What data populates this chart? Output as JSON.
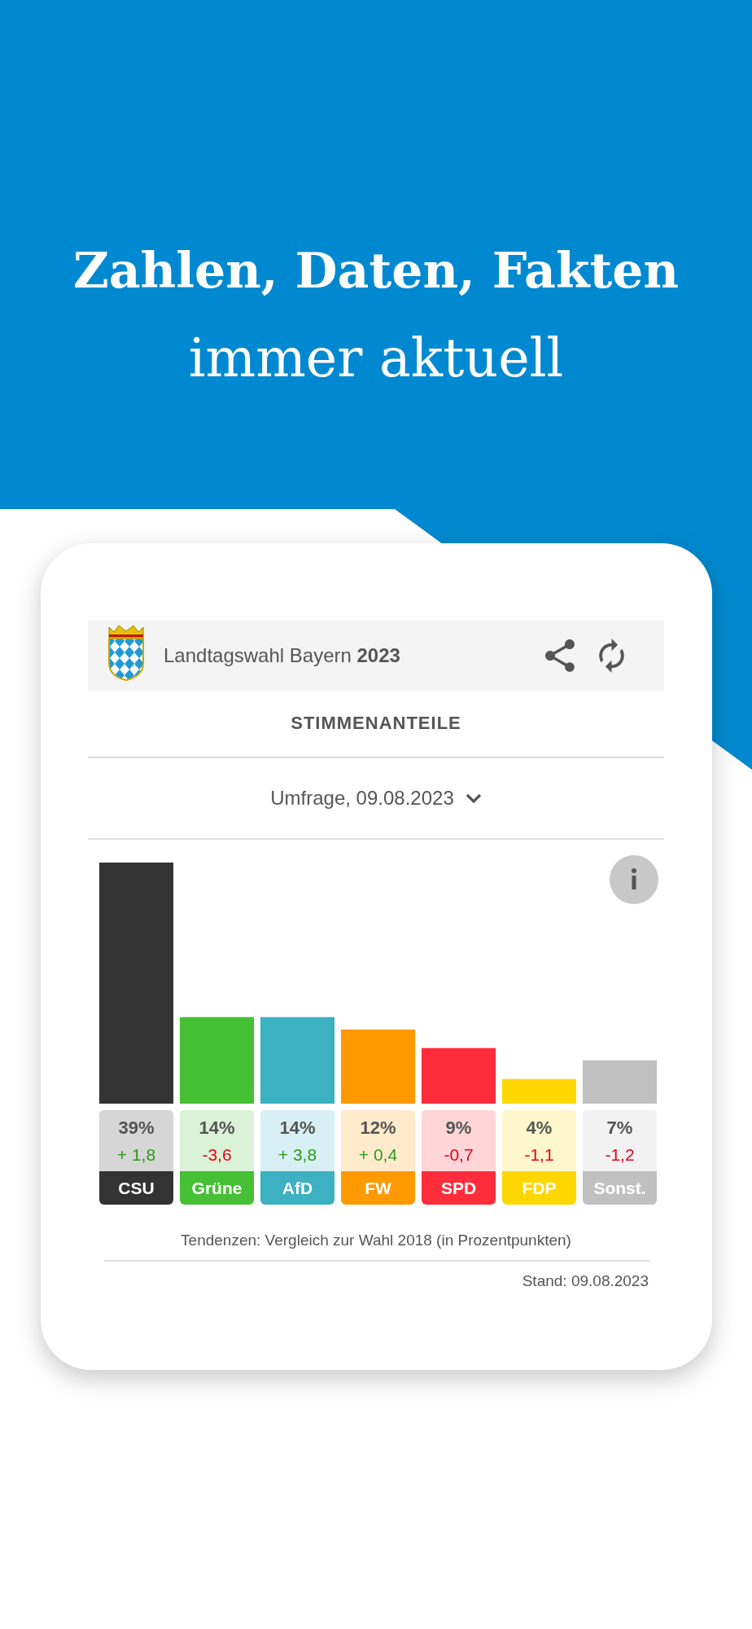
{
  "chart_data": {
    "type": "bar",
    "title": "Landtagswahl Bayern 2023",
    "subtitle": "STIMMENANTEILE",
    "categories": [
      "CSU",
      "Grüne",
      "AfD",
      "FW",
      "SPD",
      "FDP",
      "Sonst."
    ],
    "values": [
      39,
      14,
      14,
      12,
      9,
      4,
      7
    ],
    "colors": [
      "#333333",
      "#46c034",
      "#3bb1c1",
      "#ff9900",
      "#ff2c3b",
      "#ffd700",
      "#c0c0c0"
    ],
    "value_labels": [
      "39%",
      "14%",
      "14%",
      "12%",
      "9%",
      "4%",
      "7%"
    ],
    "tick_labels": "x",
    "annotations": [
      "Zahlen, Daten, Fakten",
      "immer aktuell",
      "Umfrage, 09.08.2023",
      "+ 1,8",
      "-3,6",
      "+ 3,8",
      "+ 0,4",
      "-0,7",
      "-1,1",
      "-1,2",
      "Tendenzen: Vergleich zur Wahl 2018 (in Prozentpunkten)",
      "Stand: 09.08.2023"
    ]
  }
}
